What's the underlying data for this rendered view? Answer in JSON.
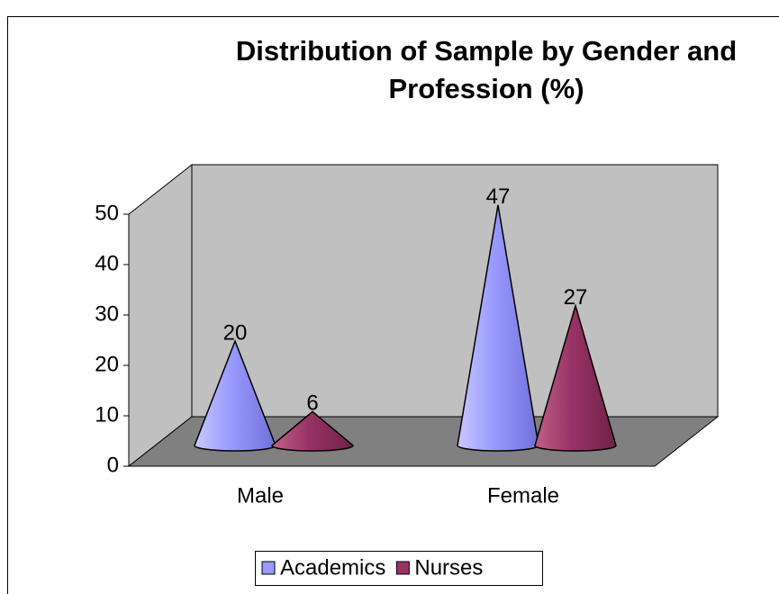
{
  "chart_data": {
    "type": "cone3d",
    "title": "Distribution of Sample by Gender and Profession (%)",
    "categories": [
      "Male",
      "Female"
    ],
    "series": [
      {
        "name": "Academics",
        "color": "#9999ff",
        "values": [
          20,
          47
        ]
      },
      {
        "name": "Nurses",
        "color": "#993366",
        "values": [
          6,
          27
        ]
      }
    ],
    "ylim": [
      0,
      50
    ],
    "yticks": [
      0,
      10,
      20,
      30,
      40,
      50
    ],
    "grid": false,
    "legend": "bottom"
  }
}
